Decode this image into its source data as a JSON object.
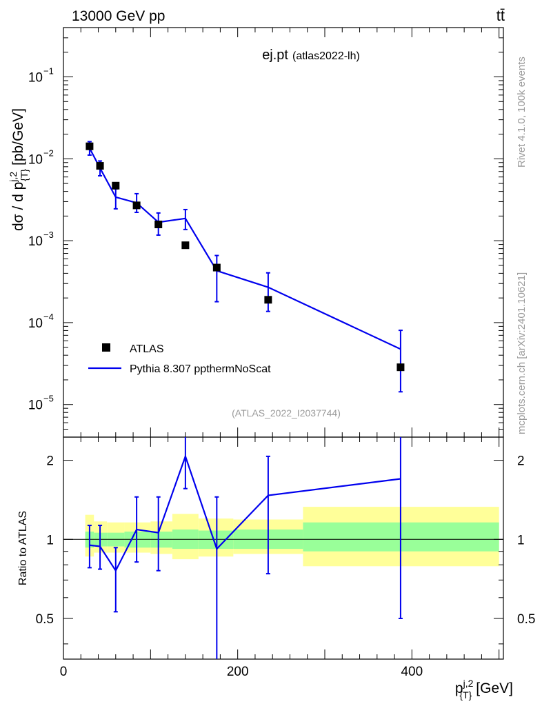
{
  "header": {
    "left": "13000 GeV pp",
    "right": "tt̄",
    "title_main": "ej.pt",
    "title_sub": "(atlas2022-lh)",
    "analysis_id": "(ATLAS_2022_I2037744)"
  },
  "side": {
    "rivet": "Rivet 4.1.0,  100k events",
    "mcplots": "mcplots.cern.ch [arXiv:2401.10621]"
  },
  "colors": {
    "data": "#000000",
    "mc": "#0000ee",
    "band_inner": "#99ff99",
    "band_outer": "#ffff99",
    "frame": "#000000",
    "note": "#999999"
  },
  "chart_data": {
    "type": "scatter",
    "xlabel": "p",
    "xlabel_sup": "j,2",
    "xlabel_sub": "{T}",
    "xlabel_unit": "[GeV]",
    "ylabel": "dσ / d p",
    "ylabel_sup": "j,2",
    "ylabel_sub": "{T}",
    "ylabel_unit": "[pb/GeV]",
    "ratio_ylabel": "Ratio to ATLAS",
    "xlim": [
      0,
      505
    ],
    "ylim": [
      4e-06,
      0.4
    ],
    "ratio_ylim": [
      0.35,
      2.45
    ],
    "x_ticks": [
      0,
      200,
      400
    ],
    "x_tick_labels": [
      "0",
      "200",
      "400"
    ],
    "y_ticks": [
      1e-05,
      0.0001,
      0.001,
      0.01,
      0.1
    ],
    "y_tick_labels": [
      "10",
      "10",
      "10",
      "10",
      "10"
    ],
    "y_tick_exps": [
      "−5",
      "−4",
      "−3",
      "−2",
      "−1"
    ],
    "ratio_ticks": [
      0.5,
      1,
      2
    ],
    "ratio_tick_labels": [
      "0.5",
      "1",
      "2"
    ],
    "legend": {
      "position": "lower-left",
      "entries": [
        "ATLAS",
        "Pythia 8.307 ppthermNoScat"
      ]
    },
    "bins": [
      {
        "x": 30,
        "lo": 25,
        "hi": 35
      },
      {
        "x": 42,
        "lo": 35,
        "hi": 50
      },
      {
        "x": 60,
        "lo": 50,
        "hi": 70
      },
      {
        "x": 84,
        "lo": 70,
        "hi": 100
      },
      {
        "x": 109,
        "lo": 100,
        "hi": 125
      },
      {
        "x": 140,
        "lo": 125,
        "hi": 155
      },
      {
        "x": 176,
        "lo": 155,
        "hi": 195
      },
      {
        "x": 235,
        "lo": 195,
        "hi": 275
      },
      {
        "x": 387,
        "lo": 275,
        "hi": 500
      }
    ],
    "series": [
      {
        "name": "ATLAS",
        "x": [
          30,
          42,
          60,
          84,
          109,
          140,
          176,
          235,
          387
        ],
        "y": [
          0.0142,
          0.0082,
          0.0047,
          0.0027,
          0.00158,
          0.00088,
          0.00047,
          0.00019,
          2.85e-05
        ],
        "band_inner": [
          [
            0.93,
            1.07
          ],
          [
            0.94,
            1.06
          ],
          [
            0.94,
            1.06
          ],
          [
            0.93,
            1.07
          ],
          [
            0.93,
            1.07
          ],
          [
            0.92,
            1.09
          ],
          [
            0.92,
            1.08
          ],
          [
            0.92,
            1.09
          ],
          [
            0.9,
            1.16
          ]
        ],
        "band_outer": [
          [
            0.86,
            1.24
          ],
          [
            0.89,
            1.17
          ],
          [
            0.89,
            1.16
          ],
          [
            0.89,
            1.16
          ],
          [
            0.88,
            1.17
          ],
          [
            0.84,
            1.25
          ],
          [
            0.86,
            1.2
          ],
          [
            0.88,
            1.19
          ],
          [
            0.79,
            1.33
          ]
        ]
      },
      {
        "name": "Pythia 8.307 ppthermNoScat",
        "x": [
          30,
          42,
          60,
          84,
          109,
          140,
          176,
          235,
          387
        ],
        "y": [
          0.0135,
          0.0077,
          0.0034,
          0.0029,
          0.00168,
          0.00187,
          0.00043,
          0.00027,
          4.75e-05
        ],
        "y_err_lo": [
          0.0111,
          0.0062,
          0.00245,
          0.00222,
          0.00117,
          0.00137,
          0.00018,
          0.000137,
          1.43e-05
        ],
        "y_err_hi": [
          0.0162,
          0.0094,
          0.0043,
          0.00375,
          0.00218,
          0.0024,
          0.00066,
          0.000405,
          8.05e-05
        ],
        "ratio": [
          0.95,
          0.94,
          0.76,
          1.09,
          1.06,
          2.07,
          0.92,
          1.47,
          1.7
        ],
        "ratio_lo": [
          0.78,
          0.77,
          0.53,
          0.82,
          0.76,
          1.56,
          0.35,
          0.74,
          0.5
        ],
        "ratio_hi": [
          1.13,
          1.13,
          0.93,
          1.45,
          1.45,
          2.55,
          1.45,
          2.07,
          2.55
        ]
      }
    ]
  }
}
